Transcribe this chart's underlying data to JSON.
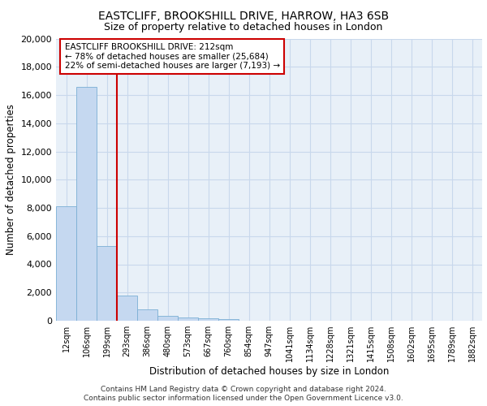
{
  "title1": "EASTCLIFF, BROOKSHILL DRIVE, HARROW, HA3 6SB",
  "title2": "Size of property relative to detached houses in London",
  "xlabel": "Distribution of detached houses by size in London",
  "ylabel": "Number of detached properties",
  "footnote1": "Contains HM Land Registry data © Crown copyright and database right 2024.",
  "footnote2": "Contains public sector information licensed under the Open Government Licence v3.0.",
  "bin_labels": [
    "12sqm",
    "106sqm",
    "199sqm",
    "293sqm",
    "386sqm",
    "480sqm",
    "573sqm",
    "667sqm",
    "760sqm",
    "854sqm",
    "947sqm",
    "1041sqm",
    "1134sqm",
    "1228sqm",
    "1321sqm",
    "1415sqm",
    "1508sqm",
    "1602sqm",
    "1695sqm",
    "1789sqm",
    "1882sqm"
  ],
  "bar_values": [
    8100,
    16600,
    5300,
    1800,
    780,
    350,
    210,
    160,
    100,
    0,
    0,
    0,
    0,
    0,
    0,
    0,
    0,
    0,
    0,
    0,
    0
  ],
  "bar_color": "#c5d8f0",
  "bar_edge_color": "#7bafd4",
  "grid_color": "#c8d8ec",
  "background_color": "#e8f0f8",
  "marker_label": "EASTCLIFF BROOKSHILL DRIVE: 212sqm",
  "annotation_line1": "← 78% of detached houses are smaller (25,684)",
  "annotation_line2": "22% of semi-detached houses are larger (7,193) →",
  "annotation_box_color": "#cc0000",
  "ylim": [
    0,
    20000
  ],
  "yticks": [
    0,
    2000,
    4000,
    6000,
    8000,
    10000,
    12000,
    14000,
    16000,
    18000,
    20000
  ]
}
